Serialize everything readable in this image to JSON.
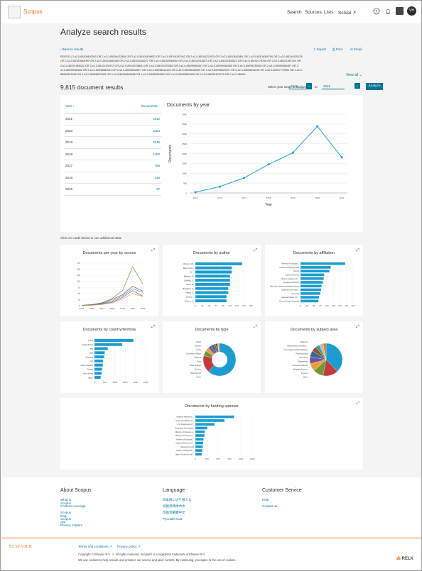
{
  "header": {
    "brand": "Scopus",
    "nav": [
      "Search",
      "Sources",
      "Lists",
      "SciVal ↗"
    ],
    "avatar": "VH"
  },
  "page_title": "Analyze search results",
  "back_link": "‹ Back to results",
  "actions": [
    "Export",
    "Print",
    "Email"
  ],
  "query": {
    "lines": [
      "REFEID ( 2-s2.0-85108402563  OR  2-s2.0-85106472884  OR  2-s2.0-85104198922  OR  2-s2.0-85104287942  OR  2-s2.0-85104212975  OR  2-s2.0-85104626B1  OR  2-s2.0-85104054790  OR  2-s2.0-85104035128",
      "OR  2-s2.0-85103648099  OR  2-s2.0-85103600180  OR  2-s2.0-85103346227  OR  2-s2.0-85102698040  OR  2-s2.0-85102418871  OR  2-s2.0-85102306513  OR  2-s2.0-85102179316  OR  2-s2.0-85101987304  OR",
      "2-s2.0-85101966422  OR  2-s2.0-85101120972  OR  2-s2.0-85100738641  OR  2-s2.0-85100329282  OR  2-s2.0-85099981847  OR  2-s2.0-85099468385  OR  2-s2.0-85099230626  OR  2-s2.0-85099085497  OR  2-",
      "s2.0-85099066582  OR  2-s2.0-85098889042  OR  2-s2.0-85098645877  OR  2-s2.0-85098424434  OR  2-s2.0-85098156699  OR  2-s2.0-85098623937  OR  2-s2.0-85098525035  OR  2-s2.0-85097779953  OR  2-s2.0-",
      "85096923098  OR  2-s2.0-85096870303  OR  2-s2.0-85096826986  OR  2-s2.0-85095939350  OR  2-s2.0-85095693405  OR  2-s2.0-85095132278  OR  2-s2.0-85092..."
    ],
    "view_all": "View all"
  },
  "results": {
    "count": "9,815 document results",
    "range_label": "Select year range to analyze:",
    "from": "2015",
    "to_label": "to",
    "to": "2021",
    "analyze": "Analyze"
  },
  "year_table": {
    "col_year": "Year ↓",
    "col_docs": "Documents ↑",
    "rows": [
      {
        "year": "2021",
        "docs": "1812"
      },
      {
        "year": "2020",
        "docs": "3384"
      },
      {
        "year": "2019",
        "docs": "2045"
      },
      {
        "year": "2018",
        "docs": "1450"
      },
      {
        "year": "2017",
        "docs": "768"
      },
      {
        "year": "2016",
        "docs": "319"
      },
      {
        "year": "2015",
        "docs": "37"
      }
    ]
  },
  "chart_data": [
    {
      "type": "line",
      "title": "Documents by year",
      "xlabel": "Year",
      "ylabel": "Documents",
      "x": [
        "2015",
        "2016",
        "2017",
        "2018",
        "2019",
        "2020",
        "2021"
      ],
      "values": [
        37,
        319,
        768,
        1450,
        2045,
        3384,
        1812
      ],
      "ylim": [
        0,
        4000
      ],
      "yticks": [
        "0",
        "500",
        "1000",
        "1500",
        "2000",
        "2500",
        "3000",
        "3500",
        "4000"
      ]
    },
    {
      "type": "line",
      "title": "Documents per year by source",
      "x": [
        "2015",
        "2016",
        "2017",
        "2018",
        "2019",
        "2020",
        "2021"
      ],
      "series": [
        {
          "values": [
            2,
            5,
            12,
            30,
            62,
            160,
            90
          ]
        },
        {
          "values": [
            1,
            4,
            10,
            26,
            45,
            80,
            60
          ]
        },
        {
          "values": [
            1,
            3,
            8,
            20,
            40,
            70,
            55
          ]
        },
        {
          "values": [
            0,
            2,
            6,
            15,
            34,
            62,
            40
          ]
        },
        {
          "values": [
            0,
            2,
            5,
            12,
            28,
            50,
            38
          ]
        }
      ],
      "ylim": [
        0,
        175
      ],
      "yticks": [
        "0",
        "25",
        "50",
        "75",
        "100",
        "125",
        "150",
        "175"
      ]
    },
    {
      "type": "bar",
      "title": "Documents by author",
      "categories": [
        "Chouha, S.B.",
        "Basit, M.S.A.",
        "Ni, J.",
        "Bakirtzis, M.",
        "Ghelfian, G.",
        "Ntorki, M.",
        "Baralizoni, H.",
        "Paiwat, G.",
        "Zhang, J.",
        "Ghaemi, G."
      ],
      "values": [
        135,
        105,
        105,
        100,
        100,
        100,
        95,
        95,
        90,
        90
      ],
      "xticks": [
        "0",
        "20",
        "40",
        "60",
        "80",
        "100",
        "120",
        "140",
        "160"
      ],
      "xlim": [
        0,
        160
      ]
    },
    {
      "type": "bar",
      "title": "Documents by affiliation",
      "categories": [
        "Ministry of Educatio...",
        "Harvard Medical School",
        "Inserm",
        "Oxford University",
        "Chinese Academy of...",
        "Zhejiang University",
        "New York University Medical Center",
        "Sapienza Universita...",
        "University",
        "National Taiwan Uni...",
        "Central South University"
      ],
      "values": [
        170,
        115,
        110,
        90,
        88,
        85,
        80,
        78,
        75,
        70,
        68
      ],
      "xticks": [
        "0",
        "25",
        "50",
        "75",
        "100",
        "125",
        "150",
        "175",
        "200"
      ],
      "xlim": [
        0,
        200
      ]
    },
    {
      "type": "bar",
      "title": "Documents by country/territory",
      "categories": [
        "China",
        "United States",
        "Italy",
        "India",
        "Germany",
        "Iran",
        "United Kingdom",
        "Taiwan",
        "South Korea",
        "Japan"
      ],
      "values": [
        1900,
        1350,
        650,
        500,
        470,
        420,
        410,
        370,
        350,
        300
      ],
      "xticks": [
        "0",
        "500",
        "1000",
        "1500",
        "2000",
        "2500"
      ],
      "xlim": [
        0,
        2500
      ]
    },
    {
      "type": "pie",
      "title": "Documents by type",
      "categories": [
        "Article",
        "Review",
        "Letter",
        "Conference Paper",
        "Editorial",
        "Note",
        "Book Chapter",
        "Erratum",
        "Short Survey",
        "Other"
      ],
      "values": [
        62,
        17,
        5,
        4,
        3,
        3,
        2,
        2,
        1,
        1
      ]
    },
    {
      "type": "pie",
      "title": "Documents by subject area",
      "categories": [
        "Medicine",
        "Biochemistry, Genetics...",
        "Immunology and Microbiology",
        "Pharmacology",
        "Chemistry",
        "Engineering",
        "Computer Science",
        "Materials Science",
        "Physics",
        "Other"
      ],
      "values": [
        38,
        15,
        10,
        8,
        7,
        6,
        5,
        4,
        4,
        3
      ]
    },
    {
      "type": "bar",
      "title": "Documents by funding sponsor",
      "categories": [
        "National Natural Sc...",
        "National Institutes of...",
        "U.S. Department of...",
        "European Commission",
        "Ministry of Science a...",
        "Ministry of Science a...",
        "Ministry of Educatio...",
        "National Research F...",
        "National Council",
        "Ministry of Educatio...",
        "Japan Society for the..."
      ],
      "values": [
        850,
        640,
        420,
        260,
        210,
        200,
        180,
        170,
        160,
        150,
        140
      ],
      "xticks": [
        "0",
        "250",
        "500",
        "750",
        "1000",
        "1250"
      ],
      "xlim": [
        0,
        1250
      ]
    }
  ],
  "card_hint": "Click on cards below to see additional data.",
  "footer": {
    "about": {
      "title": "About Scopus",
      "links": [
        "What is Scopus",
        "Content coverage",
        "Scopus blog",
        "Scopus API",
        "Privacy matters"
      ]
    },
    "language": {
      "title": "Language",
      "links": [
        "日本語に切り替える",
        "切换到简体中文",
        "切換到繁體中文",
        "Русский язык"
      ]
    },
    "service": {
      "title": "Customer Service",
      "links": [
        "Help",
        "Contact us"
      ]
    },
    "elsevier": "ELSEVIER",
    "terms": "Terms and conditions ↗",
    "privacy": "Privacy policy ↗",
    "copyright": "Copyright © Elsevier B.V. ↗. All rights reserved. Scopus® is a registered trademark of Elsevier B.V.",
    "cookies": "We use cookies to help provide and enhance our service and tailor content. By continuing, you agree to the use of cookies.",
    "relx": "RELX"
  },
  "colors": {
    "accent": "#007398",
    "bar": "#1c9ccf",
    "orange": "#e9711c"
  }
}
